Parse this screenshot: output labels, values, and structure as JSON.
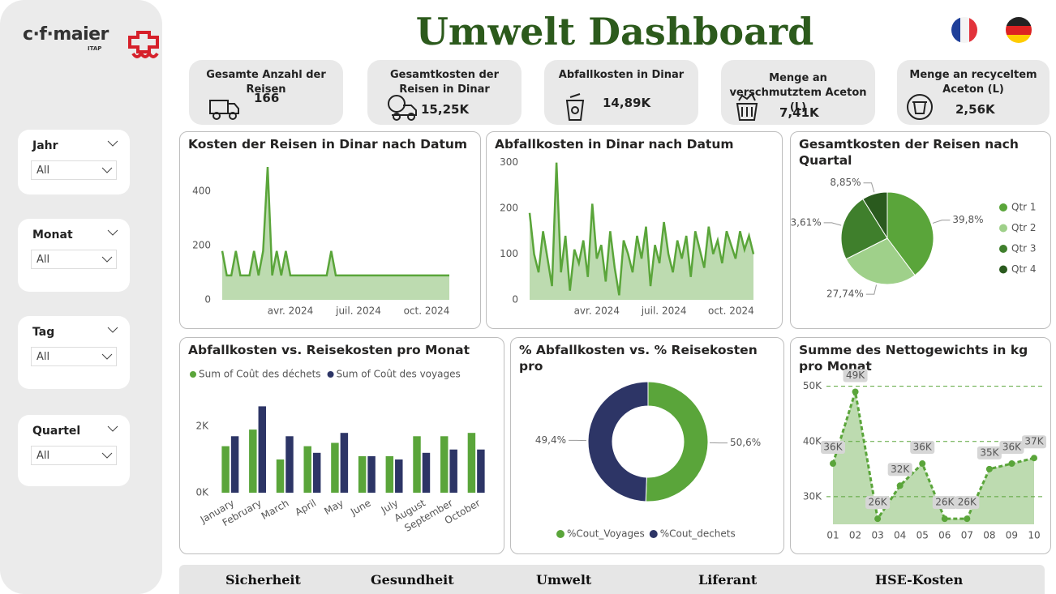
{
  "header": {
    "title": "Umwelt Dashboard",
    "logo": "c·f·maier",
    "logo_sub": "ITAP"
  },
  "kpis": [
    {
      "label": "Gesamte Anzahl der Reisen",
      "value": "166"
    },
    {
      "label": "Gesamtkosten der Reisen in Dinar",
      "value": "15,25K"
    },
    {
      "label": "Abfallkosten in Dinar",
      "value": "14,89K"
    },
    {
      "label": "Menge an verschmutztem Aceton (L)",
      "value": "7,41K"
    },
    {
      "label": "Menge an recyceltem Aceton (L)",
      "value": "2,56K"
    }
  ],
  "filters": [
    {
      "label": "Jahr",
      "value": "All"
    },
    {
      "label": "Monat",
      "value": "All"
    },
    {
      "label": "Tag",
      "value": "All"
    },
    {
      "label": "Quartel",
      "value": "All"
    }
  ],
  "nav": [
    "Sicherheit",
    "Gesundheit",
    "Umwelt",
    "Liferant",
    "HSE-Kosten"
  ],
  "chart_data": [
    {
      "type": "area",
      "title": "Kosten der Reisen in Dinar nach Datum",
      "color": "#5aa53a",
      "grid": false,
      "markers": false,
      "line_style": "solid",
      "categories": [
        null,
        null,
        null,
        null,
        null,
        null,
        null,
        null,
        null,
        null,
        null,
        null,
        null,
        null,
        null,
        "avr. 2024",
        null,
        null,
        null,
        null,
        null,
        null,
        null,
        null,
        null,
        null,
        null,
        null,
        null,
        null,
        "juil. 2024",
        null,
        null,
        null,
        null,
        null,
        null,
        null,
        null,
        null,
        null,
        null,
        null,
        null,
        null,
        "oct. 2024",
        null,
        null,
        null,
        null,
        null
      ],
      "values": [
        180,
        90,
        90,
        180,
        90,
        90,
        90,
        180,
        90,
        180,
        490,
        90,
        180,
        90,
        180,
        90,
        90,
        90,
        90,
        90,
        90,
        90,
        90,
        90,
        180,
        90,
        90,
        90,
        90,
        90,
        90,
        90,
        90,
        90,
        90,
        90,
        90,
        90,
        90,
        90,
        90,
        90,
        90,
        90,
        90,
        90,
        90,
        90,
        90,
        90,
        90
      ],
      "ylim": [
        0,
        520
      ],
      "yticks": [
        0,
        200,
        400
      ]
    },
    {
      "type": "area",
      "title": "Abfallkosten in Dinar nach Datum",
      "color": "#5aa53a",
      "grid": false,
      "markers": false,
      "line_style": "solid",
      "categories": [
        null,
        null,
        null,
        null,
        null,
        null,
        null,
        null,
        null,
        null,
        null,
        null,
        null,
        null,
        null,
        "avr. 2024",
        null,
        null,
        null,
        null,
        null,
        null,
        null,
        null,
        null,
        null,
        null,
        null,
        null,
        null,
        "juil. 2024",
        null,
        null,
        null,
        null,
        null,
        null,
        null,
        null,
        null,
        null,
        null,
        null,
        null,
        null,
        "oct. 2024",
        null,
        null,
        null,
        null,
        null
      ],
      "values": [
        190,
        100,
        60,
        150,
        90,
        30,
        300,
        60,
        140,
        20,
        110,
        80,
        130,
        50,
        210,
        90,
        120,
        40,
        150,
        70,
        10,
        130,
        100,
        60,
        140,
        90,
        160,
        30,
        120,
        80,
        170,
        100,
        60,
        130,
        90,
        140,
        50,
        150,
        110,
        70,
        160,
        100,
        130,
        80,
        150,
        120,
        90,
        150,
        110,
        140,
        100
      ],
      "ylim": [
        0,
        310
      ],
      "yticks": [
        0,
        100,
        200,
        300
      ]
    },
    {
      "type": "pie",
      "title": "Gesamtkosten der Reisen nach Quartal",
      "categories": [
        "Qtr 1",
        "Qtr 2",
        "Qtr 3",
        "Qtr 4"
      ],
      "values": [
        39.8,
        27.74,
        23.61,
        8.85
      ],
      "value_labels": [
        "39,8%",
        "27,74%",
        "23,61%",
        "8,85%"
      ],
      "colors": [
        "#5aa53a",
        "#9fd08a",
        "#3f7f2c",
        "#2a5a1e"
      ],
      "legend": "right"
    },
    {
      "type": "bar",
      "title": "Abfallkosten vs. Reisekosten pro Monat",
      "categories": [
        "January",
        "February",
        "March",
        "April",
        "May",
        "June",
        "July",
        "August",
        "September",
        "October"
      ],
      "series": [
        {
          "name": "Sum of Coût des déchets",
          "color": "#5aa53a",
          "values": [
            1400,
            1900,
            1000,
            1400,
            1500,
            1100,
            1100,
            1700,
            1700,
            1800
          ]
        },
        {
          "name": "Sum of Coût des voyages",
          "color": "#2d3566",
          "values": [
            1700,
            2600,
            1700,
            1200,
            1800,
            1100,
            1000,
            1200,
            1300,
            1300
          ]
        }
      ],
      "ylim": [
        0,
        3000
      ],
      "yticks": [
        {
          "value": 0,
          "label": "0K"
        },
        {
          "value": 2000,
          "label": "2K"
        }
      ],
      "legend": "top"
    },
    {
      "type": "donut",
      "title": "% Abfallkosten vs. % Reisekosten pro",
      "categories": [
        "%Cout_Voyages",
        "%Cout_dechets"
      ],
      "values": [
        50.6,
        49.4
      ],
      "value_labels": [
        "50,6%",
        "49,4%"
      ],
      "colors": [
        "#5aa53a",
        "#2d3566"
      ],
      "legend": "bottom"
    },
    {
      "type": "area",
      "title": "Summe des Nettogewichts in kg pro Monat",
      "color": "#5aa53a",
      "grid": true,
      "markers": true,
      "line_style": "dashed",
      "categories": [
        "01",
        "02",
        "03",
        "04",
        "05",
        "06",
        "07",
        "08",
        "09",
        "10"
      ],
      "values": [
        36000,
        49000,
        26000,
        32000,
        36000,
        26000,
        26000,
        35000,
        36000,
        37000
      ],
      "value_labels": [
        "36K",
        "49K",
        "26K",
        "32K",
        "36K",
        "26K",
        "26K",
        "35K",
        "36K",
        "37K"
      ],
      "ylim": [
        25000,
        52000
      ],
      "yticks": [
        {
          "value": 30000,
          "label": "30K"
        },
        {
          "value": 40000,
          "label": "40K"
        },
        {
          "value": 50000,
          "label": "50K"
        }
      ]
    }
  ]
}
